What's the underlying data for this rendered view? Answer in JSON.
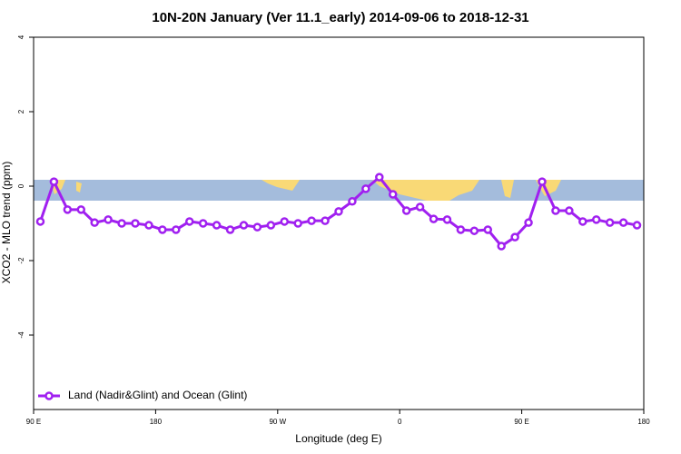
{
  "chart_data": {
    "type": "line",
    "title": "10N-20N January (Ver 11.1_early)   2014-09-06 to 2018-12-31",
    "xlabel": "Longitude (deg E)",
    "ylabel": "XCO2 - MLO trend (ppm)",
    "xlim": [
      90,
      540
    ],
    "ylim": [
      -6,
      4
    ],
    "xticks": [
      {
        "value": 90,
        "label": "90 E"
      },
      180,
      {
        "value": 270,
        "label": "90 W"
      },
      {
        "value": 360,
        "label": "0"
      },
      {
        "value": 450,
        "label": "90 E"
      },
      {
        "value": 540,
        "label": "180"
      }
    ],
    "yticks": [
      -4,
      -2,
      0,
      2,
      4
    ],
    "legend": "bottom-left",
    "x": [
      95,
      105,
      115,
      125,
      135,
      145,
      155,
      165,
      175,
      185,
      195,
      205,
      215,
      225,
      235,
      245,
      255,
      265,
      275,
      285,
      295,
      305,
      315,
      325,
      335,
      345,
      355,
      365,
      375,
      385,
      395,
      405,
      415,
      425,
      435,
      445,
      455,
      465,
      475,
      485,
      495,
      505,
      515,
      525,
      535
    ],
    "series": [
      {
        "name": "Land (Nadir&Glint) and Ocean (Glint)",
        "color": "#a020f0",
        "values": [
          -0.95,
          0.12,
          -0.63,
          -0.63,
          -0.98,
          -0.9,
          -1.0,
          -1.0,
          -1.05,
          -1.17,
          -1.17,
          -0.95,
          -1.0,
          -1.05,
          -1.17,
          -1.05,
          -1.1,
          -1.05,
          -0.95,
          -1.0,
          -0.93,
          -0.93,
          -0.68,
          -0.41,
          -0.07,
          0.24,
          -0.22,
          -0.66,
          -0.56,
          -0.88,
          -0.9,
          -1.17,
          -1.2,
          -1.17,
          -1.61,
          -1.37,
          -0.98,
          0.12,
          -0.66,
          -0.66,
          -0.95,
          -0.9,
          -0.98,
          -0.98,
          -1.05
        ]
      }
    ]
  }
}
